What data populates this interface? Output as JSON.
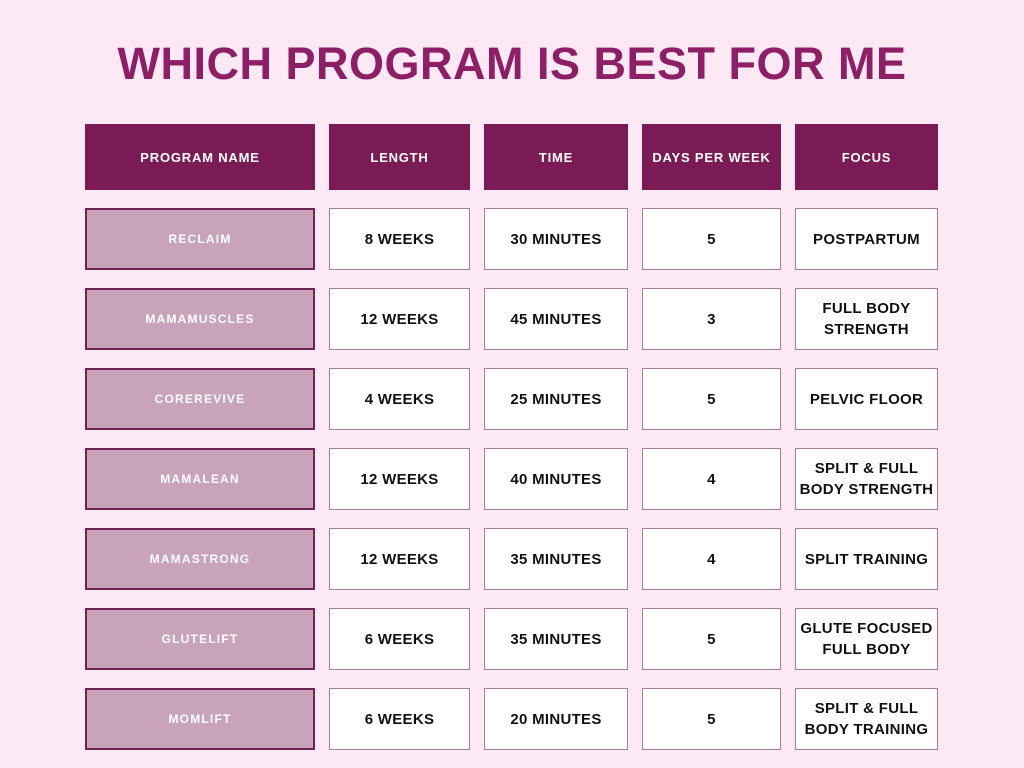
{
  "title": "WHICH PROGRAM IS BEST FOR ME",
  "chart_data": {
    "type": "table",
    "title": "WHICH PROGRAM IS BEST FOR ME",
    "columns": [
      "PROGRAM NAME",
      "LENGTH",
      "TIME",
      "DAYS PER WEEK",
      "FOCUS"
    ],
    "rows": [
      {
        "program": "RECLAIM",
        "length": "8 WEEKS",
        "time": "30 MINUTES",
        "days_per_week": "5",
        "focus": "POSTPARTUM"
      },
      {
        "program": "MAMAMUSCLES",
        "length": "12 WEEKS",
        "time": "45 MINUTES",
        "days_per_week": "3",
        "focus": "FULL BODY\nSTRENGTH"
      },
      {
        "program": "COREREVIVE",
        "length": "4 WEEKS",
        "time": "25 MINUTES",
        "days_per_week": "5",
        "focus": "PELVIC FLOOR"
      },
      {
        "program": "MAMALEAN",
        "length": "12 WEEKS",
        "time": "40 MINUTES",
        "days_per_week": "4",
        "focus": "SPLIT & FULL\nBODY STRENGTH"
      },
      {
        "program": "MAMASTRONG",
        "length": "12 WEEKS",
        "time": "35 MINUTES",
        "days_per_week": "4",
        "focus": "SPLIT TRAINING"
      },
      {
        "program": "GLUTELIFT",
        "length": "6 WEEKS",
        "time": "35 MINUTES",
        "days_per_week": "5",
        "focus": "GLUTE FOCUSED\nFULL BODY"
      },
      {
        "program": "MOMLIFT",
        "length": "6 WEEKS",
        "time": "20 MINUTES",
        "days_per_week": "5",
        "focus": "SPLIT & FULL\nBODY TRAINING"
      }
    ]
  },
  "colors": {
    "page_background": "#fce9f3",
    "title_text": "#8e1f66",
    "header_background": "#7a1b55",
    "header_text": "#ffffff",
    "program_cell_background": "#c8a3b9",
    "program_cell_border": "#6d2457",
    "program_cell_text": "#ffffff",
    "data_cell_background": "#ffffff",
    "data_cell_border": "#aa7c9e",
    "data_cell_text": "#111111"
  }
}
